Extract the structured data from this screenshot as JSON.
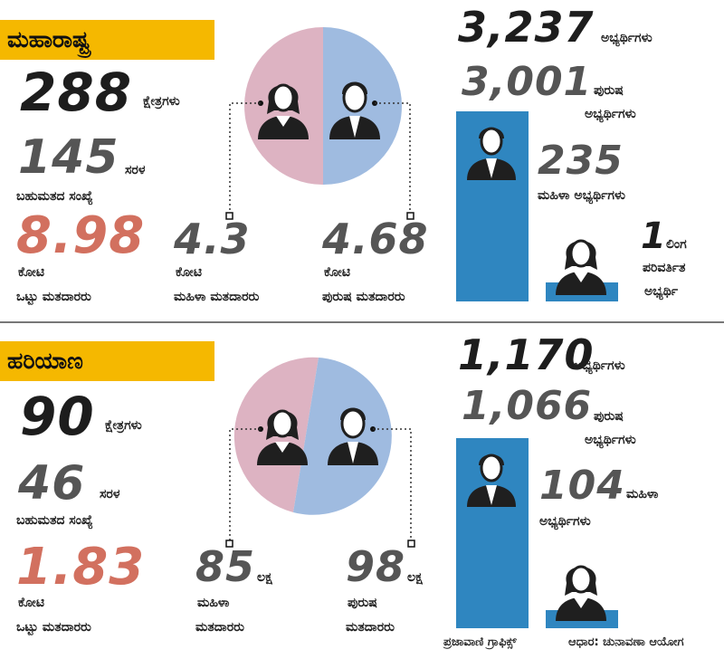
{
  "maharashtra": {
    "title": "ಮಹಾರಾಷ್ಟ್ರ",
    "constituencies_value": "288",
    "constituencies_unit": "ಕ್ಷೇತ್ರಗಳು",
    "majority_value": "145",
    "majority_unit": "ಸರಳ",
    "majority_label": "ಬಹುಮತದ ಸಂಖ್ಯೆ",
    "total_voters_value": "8.98",
    "total_voters_line1": "ಕೋಟಿ",
    "total_voters_line2": "ಒಟ್ಟು ಮತದಾರರು",
    "female_voters_value": "4.3",
    "female_voters_line1": "ಕೋಟಿ",
    "female_voters_line2": "ಮಹಿಳಾ ಮತದಾರರು",
    "male_voters_value": "4.68",
    "male_voters_line1": "ಕೋಟಿ",
    "male_voters_line2": "ಪುರುಷ ಮತದಾರರು",
    "total_candidates_value": "3,237",
    "total_candidates_unit": "ಅಭ್ಯರ್ಥಿಗಳು",
    "male_candidates_value": "3,001",
    "male_candidates_line1": "ಪುರುಷ",
    "male_candidates_line2": "ಅಭ್ಯರ್ಥಿಗಳು",
    "female_candidates_value": "235",
    "female_candidates_label": "ಮಹಿಳಾ ಅಭ್ಯರ್ಥಿಗಳು",
    "transgender_value": "1",
    "transgender_line1": "ಲಿಂಗ",
    "transgender_line2": "ಪರಿವರ್ತಿತ",
    "transgender_line3": "ಅಭ್ಯರ್ಥಿ"
  },
  "haryana": {
    "title": "ಹರಿಯಾಣ",
    "constituencies_value": "90",
    "constituencies_unit": "ಕ್ಷೇತ್ರಗಳು",
    "majority_value": "46",
    "majority_unit": "ಸರಳ",
    "majority_label": "ಬಹುಮತದ ಸಂಖ್ಯೆ",
    "total_voters_value": "1.83",
    "total_voters_line1": "ಕೋಟಿ",
    "total_voters_line2": "ಒಟ್ಟು ಮತದಾರರು",
    "female_voters_value": "85",
    "female_voters_unit": "ಲಕ್ಷ",
    "female_voters_line1": "ಮಹಿಳಾ",
    "female_voters_line2": "ಮತದಾರರು",
    "male_voters_value": "98",
    "male_voters_unit": "ಲಕ್ಷ",
    "male_voters_line1": "ಪುರುಷ",
    "male_voters_line2": "ಮತದಾರರು",
    "total_candidates_value": "1,170",
    "total_candidates_unit": "ಅಭ್ಯರ್ಥಿಗಳು",
    "male_candidates_value": "1,066",
    "male_candidates_line1": "ಪುರುಷ",
    "male_candidates_line2": "ಅಭ್ಯರ್ಥಿಗಳು",
    "female_candidates_value": "104",
    "female_candidates_unit": "ಮಹಿಳಾ",
    "female_candidates_label": "ಅಭ್ಯರ್ಥಿಗಳು"
  },
  "footer": {
    "credit": "ಪ್ರಜಾವಾಣಿ ಗ್ರಾಫಿಕ್ಸ್",
    "source": "ಆಧಾರ: ಚುನಾವಣಾ ಆಯೋಗ"
  },
  "colors": {
    "title_bar": "#f5b800",
    "female_slice": "#ddb3c2",
    "male_slice": "#9fbbe0",
    "bar": "#2f86c0",
    "highlight_red": "#d2705f"
  }
}
